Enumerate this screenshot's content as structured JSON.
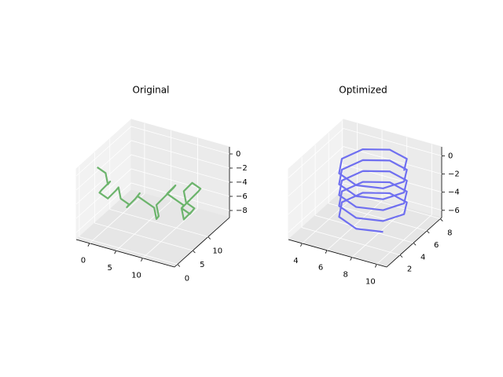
{
  "chart_data": [
    {
      "type": "line3d",
      "title": "Original",
      "color": "#6cb46c",
      "x": [
        -2,
        -1,
        0,
        1,
        0,
        -1,
        0,
        1,
        2,
        3,
        4,
        3,
        4,
        5,
        6,
        5,
        6,
        7,
        8,
        9,
        8,
        9,
        10,
        11,
        10,
        11,
        12,
        11,
        12,
        13,
        14,
        13,
        12,
        13,
        14,
        13,
        12,
        11,
        12,
        13
      ],
      "y": [
        5,
        6,
        5,
        4,
        3,
        4,
        5,
        6,
        5,
        4,
        5,
        6,
        7,
        6,
        5,
        6,
        7,
        8,
        7,
        6,
        7,
        8,
        9,
        8,
        7,
        8,
        9,
        10,
        11,
        10,
        9,
        8,
        9,
        10,
        11,
        12,
        11,
        10,
        9,
        10
      ],
      "z": [
        -1,
        -2,
        -3,
        -2,
        -3,
        -4,
        -5,
        -4,
        -3,
        -4,
        -5,
        -6,
        -5,
        -4,
        -3,
        -4,
        -5,
        -6,
        -7,
        -6,
        -5,
        -4,
        -3,
        -2,
        -3,
        -4,
        -5,
        -6,
        -7,
        -6,
        -5,
        -4,
        -3,
        -2,
        -3,
        -4,
        -5,
        -6,
        -7,
        -6
      ],
      "xlim": [
        -2.5,
        16
      ],
      "ylim": [
        -1,
        17
      ],
      "zlim": [
        -9,
        1
      ],
      "xticks": [
        0,
        5,
        10
      ],
      "yticks": [
        0,
        5,
        10
      ],
      "zticks": [
        {
          "value": 0,
          "label": "0"
        },
        {
          "value": -2,
          "label": "−2"
        },
        {
          "value": -4,
          "label": "−4"
        },
        {
          "value": -6,
          "label": "−6"
        },
        {
          "value": -8,
          "label": "−8"
        }
      ]
    },
    {
      "type": "line3d",
      "title": "Optimized",
      "color": "#6f6ff0",
      "x": [
        9.5,
        8.77,
        7,
        5.23,
        4.5,
        5.23,
        7,
        8.77,
        9.5,
        8.77,
        7,
        5.23,
        4.5,
        5.23,
        7,
        8.77,
        9.5,
        8.77,
        7,
        5.23,
        4.5,
        5.23,
        7,
        8.77,
        9.5,
        8.77,
        7,
        5.23,
        4.5,
        5.23,
        7,
        8.77,
        9.5,
        8.77,
        7,
        5.23,
        4.5,
        5.23,
        7,
        8.77
      ],
      "y": [
        5,
        6.77,
        7.5,
        6.77,
        5,
        3.23,
        2.5,
        3.23,
        5,
        6.77,
        7.5,
        6.77,
        5,
        3.23,
        2.5,
        3.23,
        5,
        6.77,
        7.5,
        6.77,
        5,
        3.23,
        2.5,
        3.23,
        5,
        6.77,
        7.5,
        6.77,
        5,
        3.23,
        2.5,
        3.23,
        5,
        6.77,
        7.5,
        6.77,
        5,
        3.23,
        2.5,
        3.23
      ],
      "z": [
        0,
        -0.15,
        -0.3,
        -0.45,
        -0.6,
        -0.75,
        -0.9,
        -1.05,
        -1.2,
        -1.35,
        -1.5,
        -1.65,
        -1.8,
        -1.95,
        -2.1,
        -2.25,
        -2.4,
        -2.55,
        -2.7,
        -2.85,
        -3,
        -3.15,
        -3.3,
        -3.45,
        -3.6,
        -3.75,
        -3.9,
        -4.05,
        -4.2,
        -4.35,
        -4.5,
        -4.65,
        -4.8,
        -4.95,
        -5.1,
        -5.25,
        -5.4,
        -5.55,
        -5.7,
        -5.85
      ],
      "xlim": [
        2.9,
        10.8
      ],
      "ylim": [
        0,
        8.2
      ],
      "zlim": [
        -6.8,
        1
      ],
      "xticks": [
        4,
        6,
        8,
        10
      ],
      "yticks": [
        2,
        4,
        6,
        8
      ],
      "zticks": [
        {
          "value": 0,
          "label": "0"
        },
        {
          "value": -2,
          "label": "−2"
        },
        {
          "value": -4,
          "label": "−4"
        },
        {
          "value": -6,
          "label": "−6"
        }
      ]
    }
  ]
}
